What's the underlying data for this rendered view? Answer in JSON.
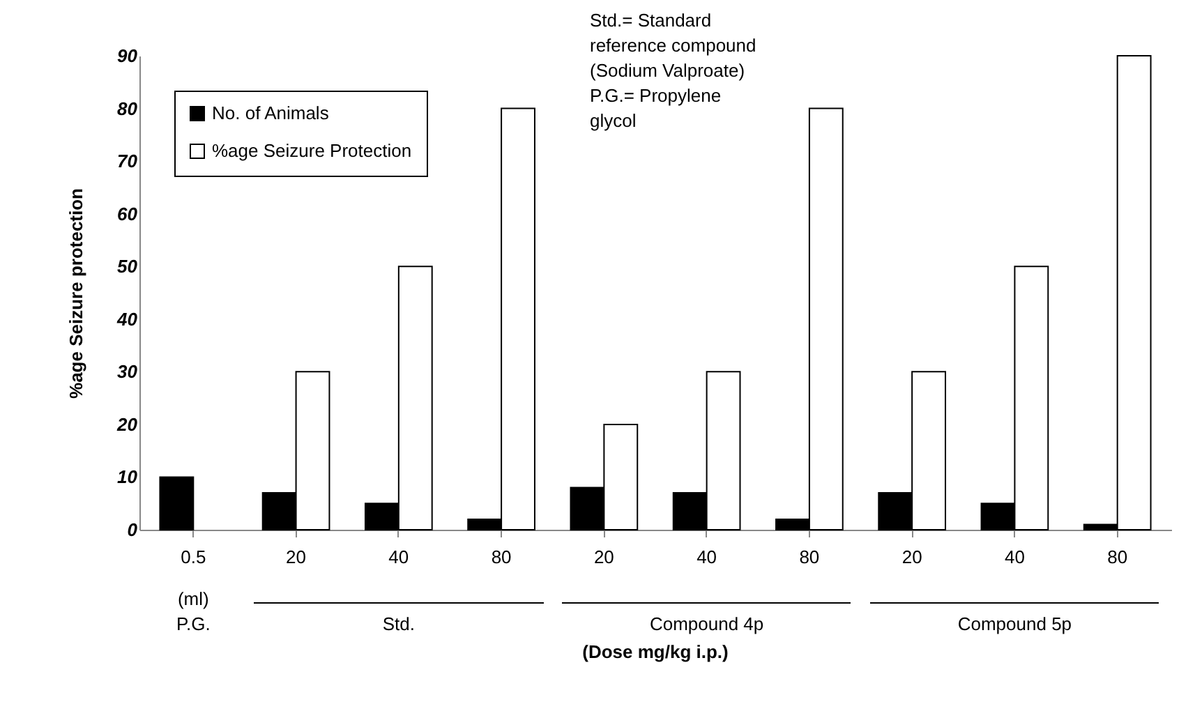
{
  "chart_data": {
    "type": "bar",
    "xlabel": "(Dose mg/kg i.p.)",
    "ylabel": "%age Seizure protection",
    "categories": [
      "0.5",
      "20",
      "40",
      "80",
      "20",
      "40",
      "80",
      "20",
      "40",
      "80"
    ],
    "series": [
      {
        "name": "No. of Animals",
        "color": "#000000",
        "values": [
          10,
          7,
          5,
          2,
          8,
          7,
          2,
          7,
          5,
          1
        ]
      },
      {
        "name": "%age Seizure Protection",
        "color": "#ffffff",
        "values": [
          0,
          30,
          50,
          80,
          20,
          30,
          80,
          30,
          50,
          90
        ]
      }
    ],
    "ylim": [
      0,
      90
    ],
    "yticks": [
      0,
      10,
      20,
      30,
      40,
      50,
      60,
      70,
      80,
      90
    ],
    "grid": false,
    "legend": "top left",
    "annotations": [
      "Std.= Standard reference compound (Sodium Valproate) P.G.= Propylene glycol",
      "(ml)",
      "P.G.",
      "Std.",
      "Compound 4p",
      "Compound 5p"
    ]
  }
}
